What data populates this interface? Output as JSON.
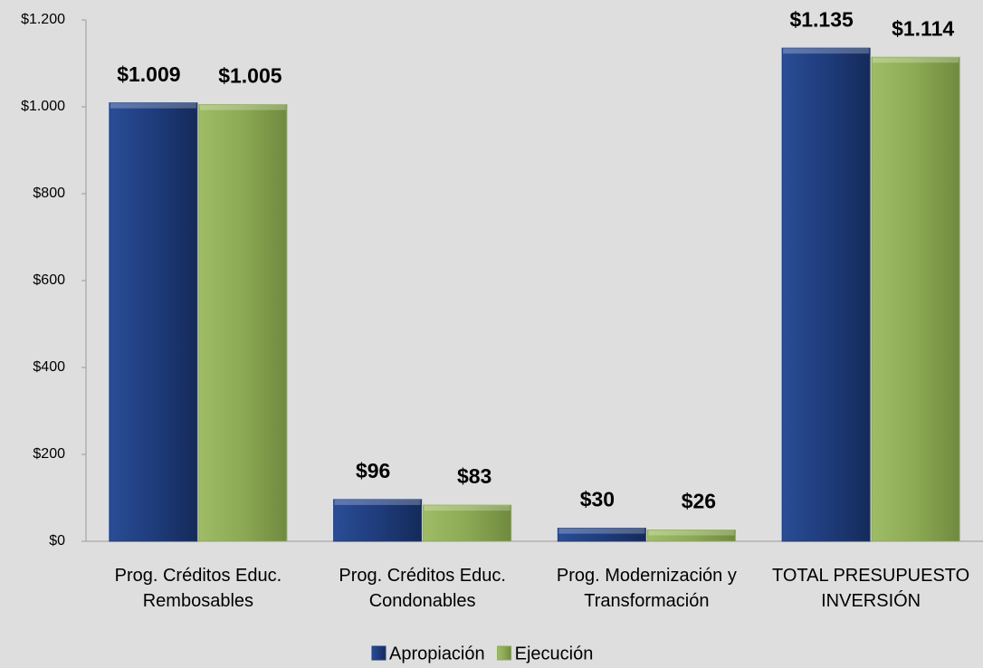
{
  "chart_data": {
    "type": "bar",
    "categories": [
      "Prog. Créditos Educ. Rembosables",
      "Prog. Créditos Educ. Condonables",
      "Prog. Modernización y Transformación",
      "TOTAL PRESUPUESTO INVERSIÓN"
    ],
    "series": [
      {
        "name": "Apropiación",
        "color": "#1f3c7c",
        "values": [
          1009,
          96,
          30,
          1135
        ],
        "value_labels": [
          "$1.009",
          "$96",
          "$30",
          "$1.135"
        ]
      },
      {
        "name": "Ejecución",
        "color": "#8ca954",
        "values": [
          1005,
          83,
          26,
          1114
        ],
        "value_labels": [
          "$1.005",
          "$83",
          "$26",
          "$1.114"
        ]
      }
    ],
    "ylim": [
      0,
      1200
    ],
    "yticks": [
      {
        "value": 0,
        "label": "$0"
      },
      {
        "value": 200,
        "label": "$200"
      },
      {
        "value": 400,
        "label": "$400"
      },
      {
        "value": 600,
        "label": "$600"
      },
      {
        "value": 800,
        "label": "$800"
      },
      {
        "value": 1000,
        "label": "$1.000"
      },
      {
        "value": 1200,
        "label": "$1.200"
      }
    ],
    "legend": "bottom"
  }
}
